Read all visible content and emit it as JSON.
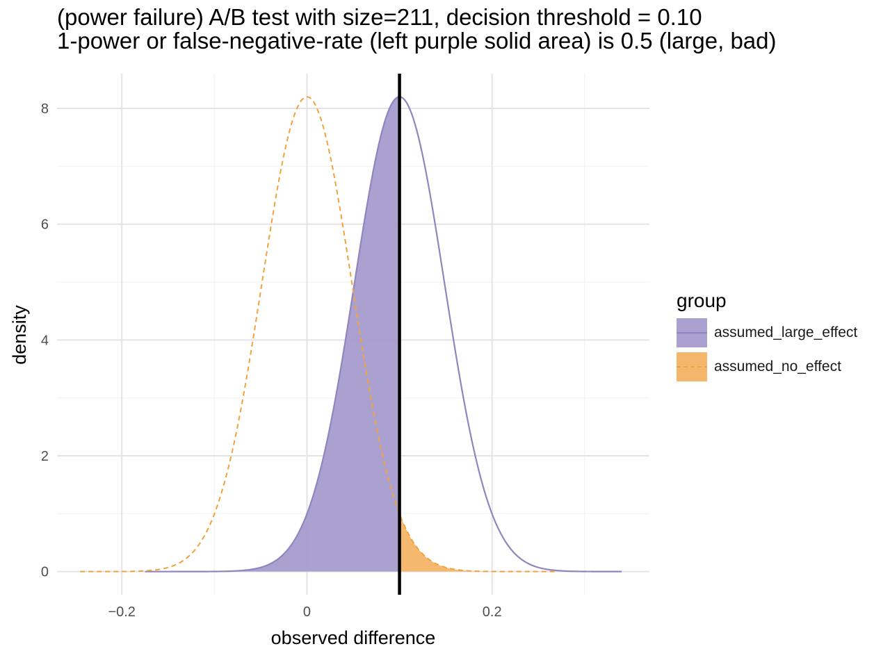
{
  "chart_data": {
    "type": "area",
    "title": "(power failure) A/B test with size=211, decision threshold = 0.10",
    "subtitle": "1-power or false-negative-rate (left purple solid area) is 0.5 (large, bad)",
    "xlabel": "observed difference",
    "ylabel": "density",
    "xlim": [
      -0.27,
      0.37
    ],
    "ylim": [
      -0.4,
      8.6
    ],
    "x_ticks": [
      -0.2,
      0,
      0.2
    ],
    "x_tick_labels": [
      "−0.2",
      "0",
      "0.2"
    ],
    "y_ticks": [
      0,
      2,
      4,
      6,
      8
    ],
    "y_tick_labels": [
      "0",
      "2",
      "4",
      "6",
      "8"
    ],
    "grid": true,
    "legend": {
      "title": "group",
      "position": "right"
    },
    "threshold": 0.1,
    "series": [
      {
        "name": "assumed_large_effect",
        "distribution": "normal",
        "mean": 0.1,
        "sd": 0.0487,
        "peak_density": 8.2,
        "x_range": [
          -0.175,
          0.34
        ],
        "line_style": "solid",
        "line_color": "#8f86bf",
        "fill_color": "#a79ccd",
        "shaded_region": "left of threshold"
      },
      {
        "name": "assumed_no_effect",
        "distribution": "normal",
        "mean": 0.0,
        "sd": 0.0487,
        "peak_density": 8.2,
        "x_range": [
          -0.245,
          0.27
        ],
        "line_style": "dashed",
        "line_color": "#f0a33c",
        "fill_color": "#f4b263",
        "shaded_region": "right of threshold"
      }
    ]
  }
}
